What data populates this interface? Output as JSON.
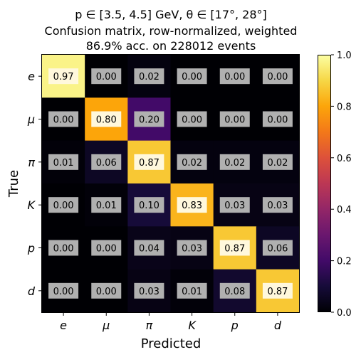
{
  "chart_data": {
    "type": "heatmap",
    "title_lines": [
      "p ∈ [3.5, 4.5] GeV, θ ∈ [17°, 28°]",
      "Confusion matrix, row-normalized, weighted",
      "86.9% acc. on 228012 events"
    ],
    "xlabel": "Predicted",
    "ylabel": "True",
    "x_categories": [
      "e",
      "μ",
      "π",
      "K",
      "p",
      "d"
    ],
    "y_categories": [
      "e",
      "μ",
      "π",
      "K",
      "p",
      "d"
    ],
    "matrix": [
      [
        0.97,
        0.0,
        0.02,
        0.0,
        0.0,
        0.0
      ],
      [
        0.0,
        0.8,
        0.2,
        0.0,
        0.0,
        0.0
      ],
      [
        0.01,
        0.06,
        0.87,
        0.02,
        0.02,
        0.02
      ],
      [
        0.0,
        0.01,
        0.1,
        0.83,
        0.03,
        0.03
      ],
      [
        0.0,
        0.0,
        0.04,
        0.03,
        0.87,
        0.06
      ],
      [
        0.0,
        0.0,
        0.03,
        0.01,
        0.08,
        0.87
      ]
    ],
    "colormap": "inferno",
    "vlim": [
      0.0,
      1.0
    ],
    "colorbar_ticks": [
      "0.0",
      "0.2",
      "0.4",
      "0.6",
      "0.8",
      "1.0"
    ],
    "label_box_colors": {
      "diagonal": "#fff8dc",
      "off_diagonal": "#b0b0b0"
    }
  }
}
